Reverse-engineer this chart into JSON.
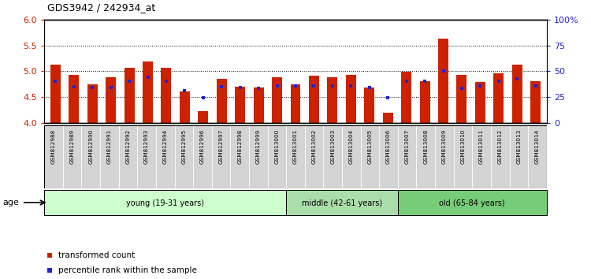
{
  "title": "GDS3942 / 242934_at",
  "samples": [
    "GSM812988",
    "GSM812989",
    "GSM812990",
    "GSM812991",
    "GSM812992",
    "GSM812993",
    "GSM812994",
    "GSM812995",
    "GSM812996",
    "GSM812997",
    "GSM812998",
    "GSM812999",
    "GSM813000",
    "GSM813001",
    "GSM813002",
    "GSM813003",
    "GSM813004",
    "GSM813005",
    "GSM813006",
    "GSM813007",
    "GSM813008",
    "GSM813009",
    "GSM813010",
    "GSM813011",
    "GSM813012",
    "GSM813013",
    "GSM813014"
  ],
  "red_values": [
    5.13,
    4.93,
    4.75,
    4.88,
    5.06,
    5.19,
    5.07,
    4.6,
    4.23,
    4.85,
    4.7,
    4.68,
    4.88,
    4.75,
    4.91,
    4.88,
    4.93,
    4.69,
    4.2,
    4.99,
    4.8,
    5.63,
    4.93,
    4.79,
    4.96,
    5.13,
    4.8
  ],
  "blue_values": [
    4.8,
    4.7,
    4.69,
    4.69,
    4.8,
    4.88,
    4.8,
    4.63,
    4.48,
    4.7,
    4.68,
    4.67,
    4.72,
    4.72,
    4.72,
    4.72,
    4.72,
    4.68,
    4.48,
    4.8,
    4.8,
    5.0,
    4.67,
    4.72,
    4.8,
    4.85,
    4.72
  ],
  "ymin": 4.0,
  "ymax": 6.0,
  "yticks_left": [
    4.0,
    4.5,
    5.0,
    5.5,
    6.0
  ],
  "yticks_right": [
    0,
    25,
    50,
    75,
    100
  ],
  "ytick_labels_right": [
    "0",
    "25",
    "50",
    "75",
    "100%"
  ],
  "bar_color": "#cc2200",
  "blue_color": "#2222cc",
  "bar_width": 0.55,
  "groups": [
    {
      "label": "young (19-31 years)",
      "start": 0,
      "end": 13,
      "color": "#ccffcc"
    },
    {
      "label": "middle (42-61 years)",
      "start": 13,
      "end": 19,
      "color": "#aaddaa"
    },
    {
      "label": "old (65-84 years)",
      "start": 19,
      "end": 27,
      "color": "#77cc77"
    }
  ],
  "age_label": "age",
  "legend_red": "transformed count",
  "legend_blue": "percentile rank within the sample",
  "grid_yticks": [
    4.5,
    5.0,
    5.5
  ],
  "xtick_bg": "#d4d4d4"
}
